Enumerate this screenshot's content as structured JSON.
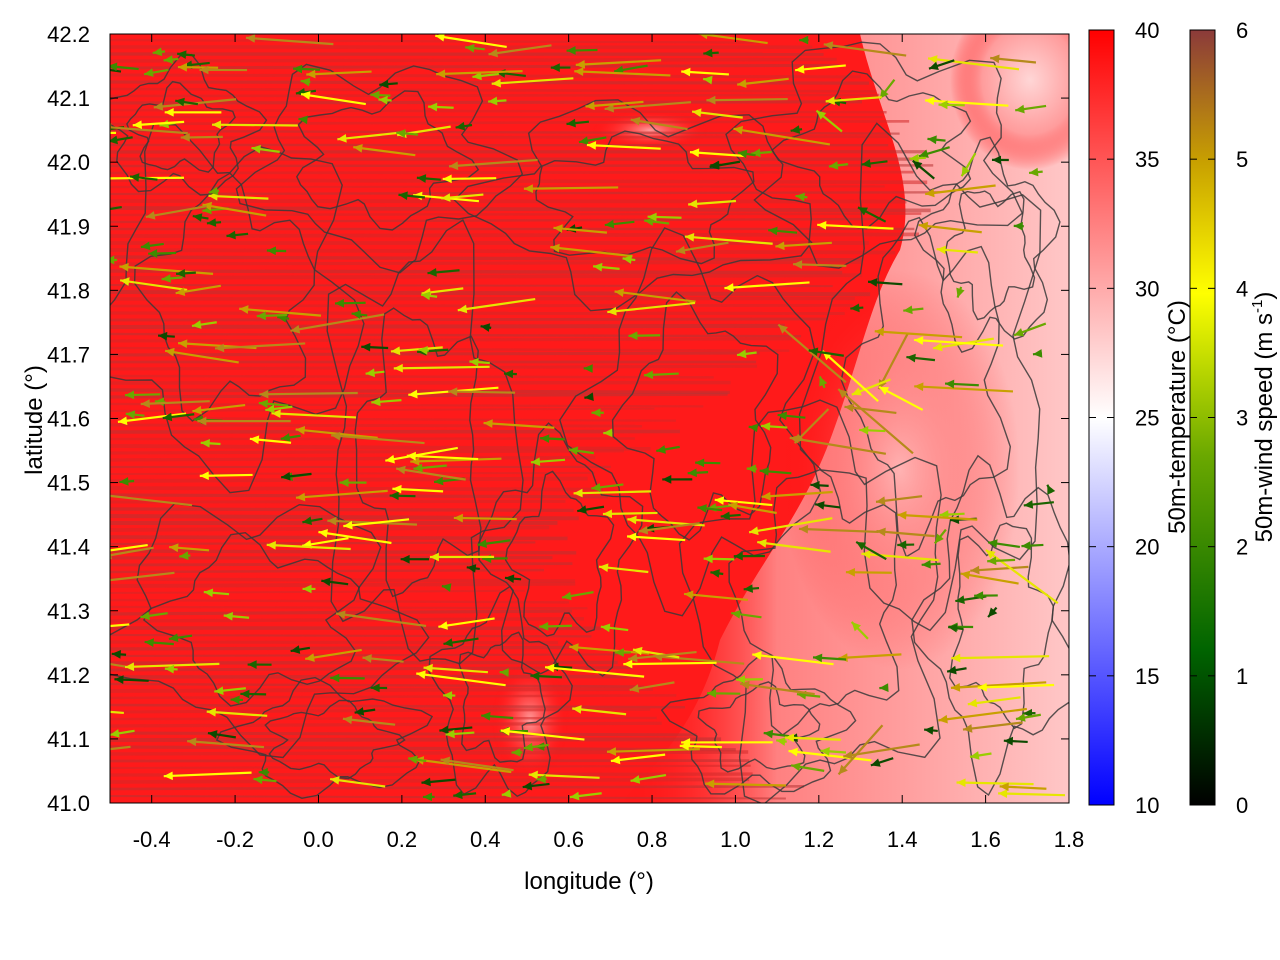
{
  "chart_data": {
    "type": "heatmap",
    "subtype": "temperature field with wind vectors and terrain contours",
    "xlabel": "longitude (°)",
    "ylabel": "latitude (°)",
    "xlim": [
      -0.5,
      1.8
    ],
    "ylim": [
      41.0,
      42.2
    ],
    "xticks": [
      "-0.4",
      "-0.2",
      "0.0",
      "0.2",
      "0.4",
      "0.6",
      "0.8",
      "1.0",
      "1.2",
      "1.4",
      "1.6",
      "1.8"
    ],
    "xtick_values": [
      -0.4,
      -0.2,
      0.0,
      0.2,
      0.4,
      0.6,
      0.8,
      1.0,
      1.2,
      1.4,
      1.6,
      1.8
    ],
    "yticks": [
      "41.0",
      "41.1",
      "41.2",
      "41.3",
      "41.4",
      "41.5",
      "41.6",
      "41.7",
      "41.8",
      "41.9",
      "42.0",
      "42.1",
      "42.2"
    ],
    "ytick_values": [
      41.0,
      41.1,
      41.2,
      41.3,
      41.4,
      41.5,
      41.6,
      41.7,
      41.8,
      41.9,
      42.0,
      42.1,
      42.2
    ],
    "grid": false,
    "temperature_colorbar": {
      "label": "50m-temperature (°C)",
      "range": [
        10,
        40
      ],
      "ticks": [
        "10",
        "15",
        "20",
        "25",
        "30",
        "35",
        "40"
      ],
      "tick_values": [
        10,
        15,
        20,
        25,
        30,
        35,
        40
      ],
      "colors": [
        "#0000ff",
        "#ffffff",
        "#ff0000"
      ]
    },
    "wind_colorbar": {
      "label_main": "50m-wind speed (m s",
      "label_sup": "-1",
      "label_end": ")",
      "range": [
        0,
        6
      ],
      "ticks": [
        "0",
        "1",
        "2",
        "3",
        "4",
        "5",
        "6"
      ],
      "tick_values": [
        0,
        1,
        2,
        3,
        4,
        5,
        6
      ],
      "colors": [
        "#000000",
        "#006400",
        "#6aa800",
        "#ffff00",
        "#c8a000",
        "#8b3a3a"
      ]
    },
    "field_summary": {
      "temperature_west_of_1.2": 40,
      "temperature_east_highlands_min": 27,
      "dominant_wind_direction": "easterly (flow toward west)",
      "wind_speed_typical": [
        1,
        5
      ]
    }
  }
}
